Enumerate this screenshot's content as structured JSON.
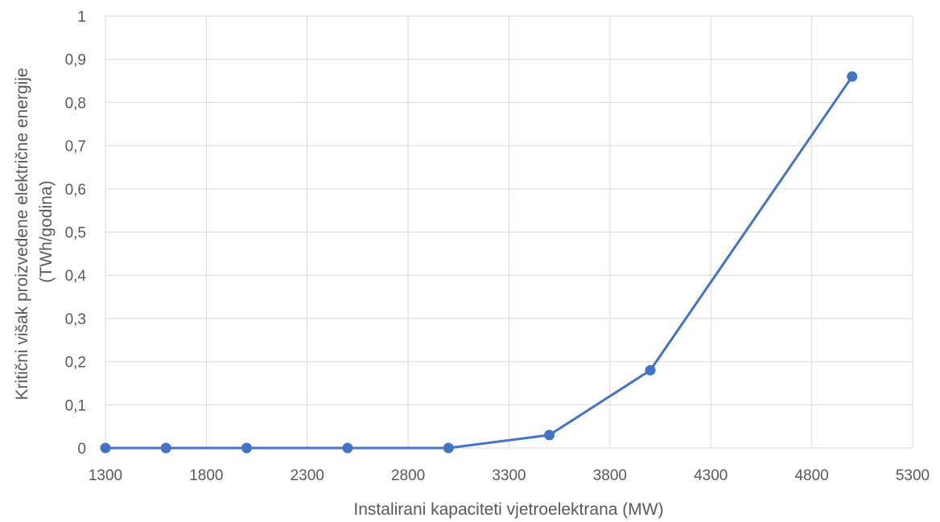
{
  "chart_data": {
    "type": "scatter",
    "mode": "lines+markers",
    "xlabel": "Instalirani kapaciteti vjetroelektrana (MW)",
    "ylabel_lines": [
      "Kritični višak proizvedene električne energije",
      "(TWh/godina)"
    ],
    "xlim": [
      1300,
      5300
    ],
    "ylim": [
      0,
      1
    ],
    "x_ticks": [
      "1300",
      "1800",
      "2300",
      "2800",
      "3300",
      "3800",
      "4300",
      "4800",
      "5300"
    ],
    "y_ticks": [
      "0",
      "0,1",
      "0,2",
      "0,3",
      "0,4",
      "0,5",
      "0,6",
      "0,7",
      "0,8",
      "0,9",
      "1"
    ],
    "grid": true,
    "legend": false,
    "series": [
      {
        "color": "#4472C4",
        "x": [
          1300,
          1600,
          2000,
          2500,
          3000,
          3500,
          4000,
          5000
        ],
        "y": [
          0,
          0,
          0,
          0,
          0,
          0.03,
          0.18,
          0.86
        ]
      }
    ]
  }
}
